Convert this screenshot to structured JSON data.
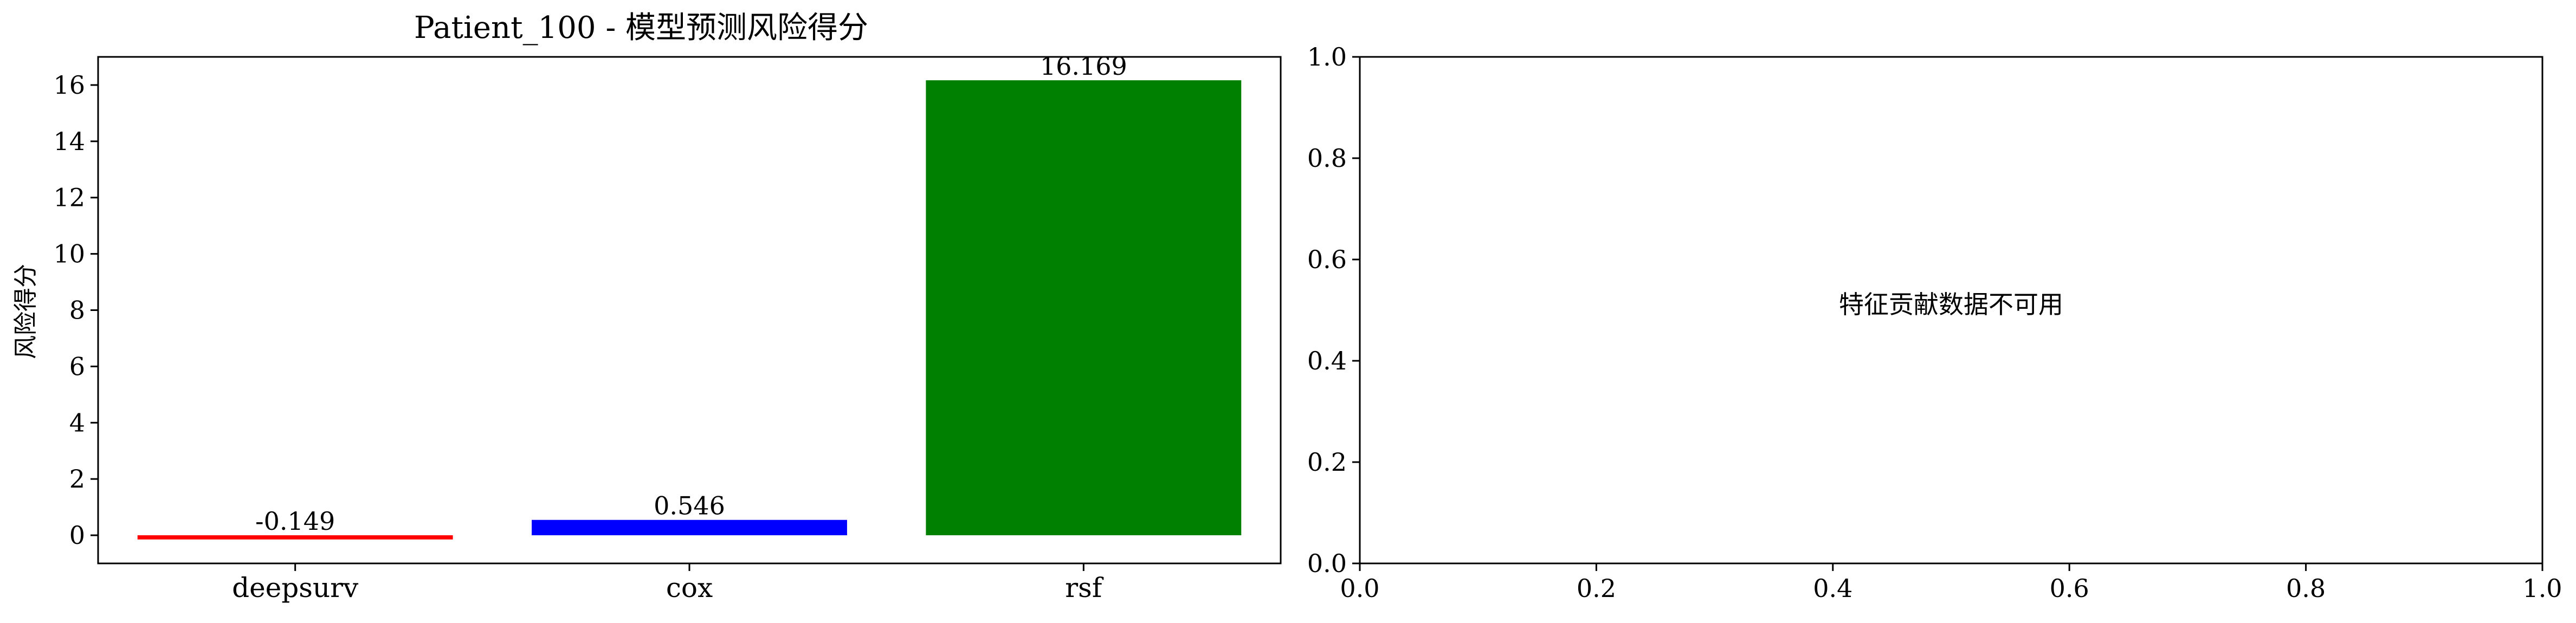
{
  "chart_data": [
    {
      "type": "bar",
      "title": "Patient_100 - 模型预测风险得分",
      "xlabel": "",
      "ylabel": "风险得分",
      "categories": [
        "deepsurv",
        "cox",
        "rsf"
      ],
      "values": [
        -0.149,
        0.546,
        16.169
      ],
      "value_labels": [
        "-0.149",
        "0.546",
        "16.169"
      ],
      "colors": [
        "#ff0000",
        "#0000ff",
        "#008000"
      ],
      "ylim": [
        -1,
        17
      ],
      "yticks": [
        0,
        2,
        4,
        6,
        8,
        10,
        12,
        14,
        16
      ],
      "grid": false
    },
    {
      "type": "table",
      "title": "",
      "message": "特征贡献数据不可用",
      "xlim": [
        0,
        1
      ],
      "ylim": [
        0,
        1
      ],
      "xticks": [
        "0.0",
        "0.2",
        "0.4",
        "0.6",
        "0.8",
        "1.0"
      ],
      "yticks": [
        "0.0",
        "0.2",
        "0.4",
        "0.6",
        "0.8",
        "1.0"
      ],
      "grid": false
    }
  ]
}
